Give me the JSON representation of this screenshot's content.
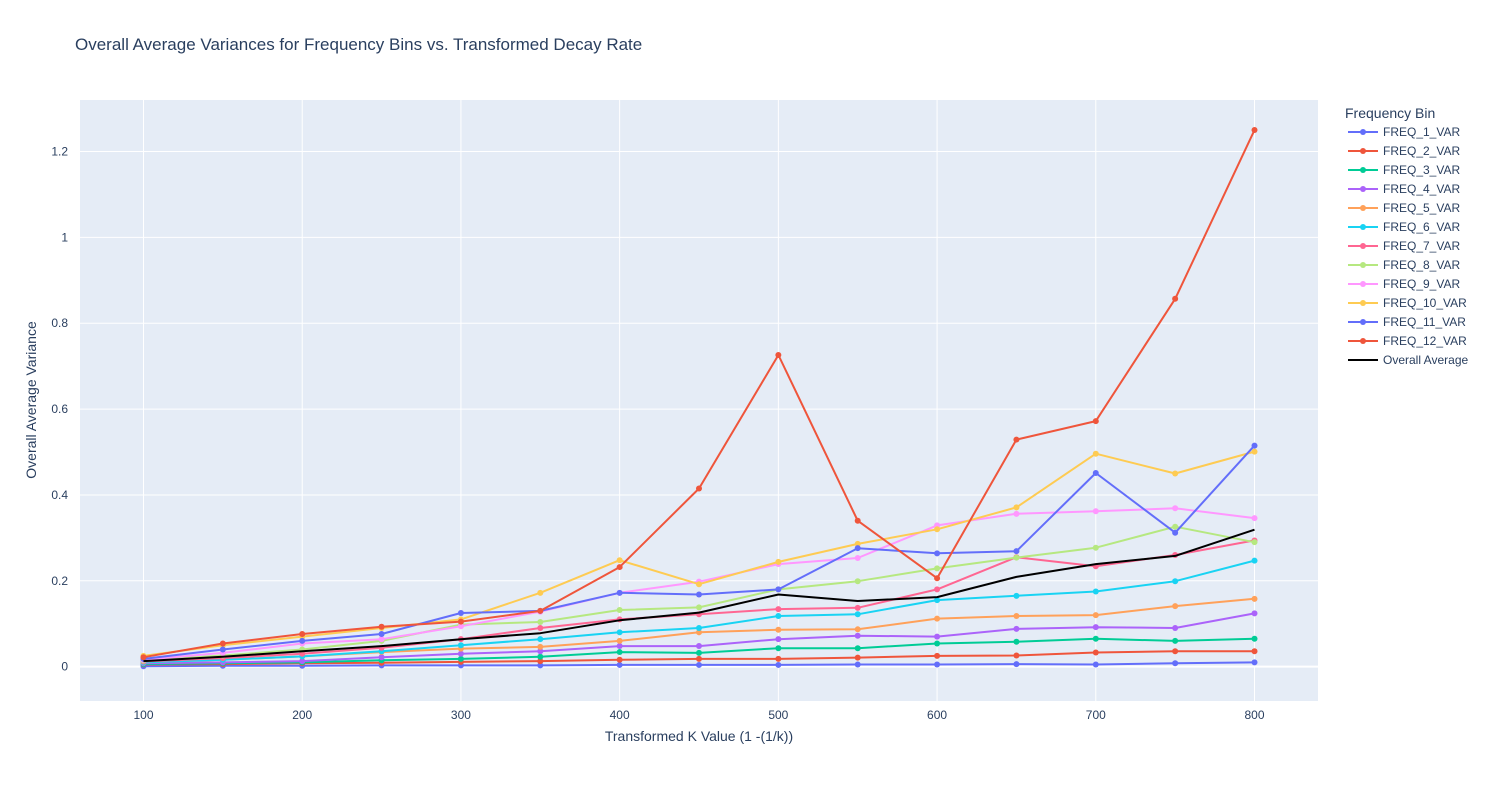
{
  "chart_data": {
    "type": "line",
    "title": "Overall Average Variances for Frequency Bins vs. Transformed Decay Rate",
    "xlabel": "Transformed K Value (1 -(1/k))",
    "ylabel": "Overall Average Variance",
    "xlim": [
      60,
      840
    ],
    "ylim": [
      -0.08,
      1.32
    ],
    "x_ticks": [
      100,
      200,
      300,
      400,
      500,
      600,
      700,
      800
    ],
    "x_tick_labels": [
      "100",
      "200",
      "300",
      "400",
      "500",
      "600",
      "700",
      "800"
    ],
    "y_ticks": [
      0,
      0.2,
      0.4,
      0.6,
      0.8,
      1,
      1.2
    ],
    "y_tick_labels": [
      "0",
      "0.2",
      "0.4",
      "0.6",
      "0.8",
      "1",
      "1.2"
    ],
    "grid": true,
    "legend_title": "Frequency Bin",
    "legend_position": "right",
    "x": [
      100,
      150,
      200,
      250,
      300,
      350,
      400,
      450,
      500,
      550,
      600,
      650,
      700,
      750,
      800
    ],
    "series": [
      {
        "name": "FREQ_1_VAR",
        "color": "#636efa",
        "markers": true,
        "values": [
          0.001,
          0.002,
          0.002,
          0.003,
          0.003,
          0.003,
          0.004,
          0.004,
          0.004,
          0.005,
          0.005,
          0.006,
          0.005,
          0.008,
          0.01
        ]
      },
      {
        "name": "FREQ_2_VAR",
        "color": "#EF553B",
        "markers": true,
        "values": [
          0.005,
          0.006,
          0.008,
          0.009,
          0.011,
          0.013,
          0.016,
          0.018,
          0.018,
          0.021,
          0.025,
          0.026,
          0.033,
          0.036,
          0.036
        ]
      },
      {
        "name": "FREQ_3_VAR",
        "color": "#00cc96",
        "markers": true,
        "values": [
          0.006,
          0.008,
          0.01,
          0.015,
          0.018,
          0.023,
          0.034,
          0.032,
          0.043,
          0.043,
          0.054,
          0.058,
          0.065,
          0.06,
          0.065
        ]
      },
      {
        "name": "FREQ_4_VAR",
        "color": "#ab63fa",
        "markers": true,
        "values": [
          0.008,
          0.01,
          0.013,
          0.022,
          0.03,
          0.036,
          0.048,
          0.048,
          0.064,
          0.072,
          0.07,
          0.088,
          0.092,
          0.09,
          0.124
        ]
      },
      {
        "name": "FREQ_5_VAR",
        "color": "#FFA15A",
        "markers": true,
        "values": [
          0.01,
          0.016,
          0.024,
          0.034,
          0.042,
          0.046,
          0.06,
          0.08,
          0.086,
          0.087,
          0.112,
          0.118,
          0.12,
          0.141,
          0.158
        ]
      },
      {
        "name": "FREQ_6_VAR",
        "color": "#19d3f3",
        "markers": true,
        "values": [
          0.01,
          0.016,
          0.024,
          0.036,
          0.05,
          0.064,
          0.08,
          0.09,
          0.118,
          0.122,
          0.155,
          0.165,
          0.175,
          0.199,
          0.247
        ]
      },
      {
        "name": "FREQ_7_VAR",
        "color": "#FF6692",
        "markers": true,
        "values": [
          0.012,
          0.02,
          0.03,
          0.044,
          0.064,
          0.09,
          0.11,
          0.122,
          0.134,
          0.137,
          0.18,
          0.255,
          0.234,
          0.26,
          0.294
        ]
      },
      {
        "name": "FREQ_8_VAR",
        "color": "#B6E880",
        "markers": true,
        "values": [
          0.014,
          0.026,
          0.04,
          0.06,
          0.098,
          0.104,
          0.132,
          0.138,
          0.18,
          0.199,
          0.229,
          0.254,
          0.277,
          0.326,
          0.29
        ]
      },
      {
        "name": "FREQ_9_VAR",
        "color": "#FF97FF",
        "markers": true,
        "values": [
          0.016,
          0.032,
          0.054,
          0.064,
          0.094,
          0.128,
          0.172,
          0.198,
          0.239,
          0.253,
          0.329,
          0.356,
          0.362,
          0.369,
          0.346
        ]
      },
      {
        "name": "FREQ_10_VAR",
        "color": "#FECB52",
        "markers": true,
        "values": [
          0.025,
          0.05,
          0.07,
          0.09,
          0.11,
          0.172,
          0.248,
          0.192,
          0.244,
          0.286,
          0.32,
          0.371,
          0.496,
          0.45,
          0.501
        ]
      },
      {
        "name": "FREQ_11_VAR",
        "color": "#636efa",
        "markers": true,
        "values": [
          0.018,
          0.04,
          0.06,
          0.076,
          0.125,
          0.13,
          0.172,
          0.168,
          0.18,
          0.276,
          0.264,
          0.269,
          0.451,
          0.312,
          0.515
        ]
      },
      {
        "name": "FREQ_12_VAR",
        "color": "#EF553B",
        "markers": true,
        "values": [
          0.022,
          0.054,
          0.076,
          0.093,
          0.105,
          0.13,
          0.232,
          0.415,
          0.726,
          0.34,
          0.206,
          0.529,
          0.572,
          0.857,
          1.25
        ]
      },
      {
        "name": "Overall Average",
        "color": "#000000",
        "markers": false,
        "values": [
          0.013,
          0.023,
          0.036,
          0.048,
          0.064,
          0.078,
          0.108,
          0.126,
          0.168,
          0.153,
          0.162,
          0.209,
          0.239,
          0.258,
          0.319
        ]
      }
    ]
  }
}
